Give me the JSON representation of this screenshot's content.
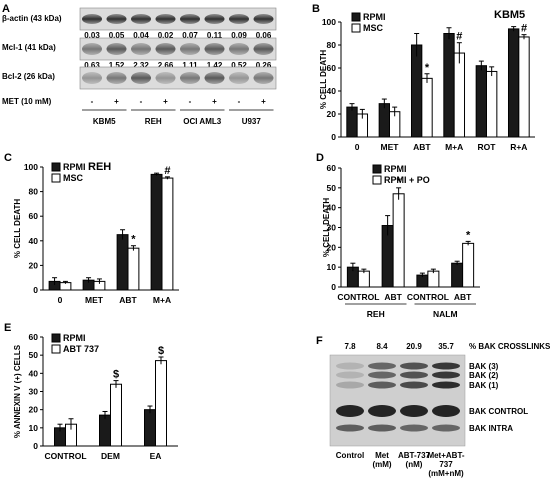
{
  "panels": {
    "A": {
      "label": "A",
      "rows": [
        {
          "name": "β-actin (43 kDa)",
          "values": [
            "0.03",
            "0.05",
            "0.04",
            "0.02",
            "0.07",
            "0.11",
            "0.09",
            "0.06"
          ]
        },
        {
          "name": "Mcl-1 (41 kDa)",
          "values": [
            "0.63",
            "1.52",
            "2.32",
            "2.66",
            "1.11",
            "1.42",
            "0.52",
            "0.26"
          ]
        },
        {
          "name": "Bcl-2 (26 kDa)",
          "values": []
        }
      ],
      "treatment_label": "MET (10 mM)",
      "treatment_marks": [
        "-",
        "+",
        "-",
        "+",
        "-",
        "+",
        "-",
        "+"
      ],
      "cell_lines": [
        "KBM5",
        "REH",
        "OCI AML3",
        "U937"
      ]
    },
    "F": {
      "label": "F",
      "header": "% BAK CROSSLINKS",
      "crosslink_values": [
        "7.8",
        "8.4",
        "20.9",
        "35.7"
      ],
      "band_labels": [
        "BAK (3)",
        "BAK (2)",
        "BAK (1)",
        "BAK CONTROL",
        "BAK INTRA"
      ],
      "lanes": [
        "Control",
        "Met\n(mM)",
        "ABT-737\n(nM)",
        "Met+ABT-\n737\n(mM+nM)"
      ]
    }
  },
  "chart_data": [
    {
      "id": "B",
      "panel_label": "B",
      "type": "bar",
      "title": "KBM5",
      "ylabel": "% CELL DEATH",
      "ylim": [
        0,
        100
      ],
      "yticks": [
        0,
        20,
        40,
        60,
        80,
        100
      ],
      "categories": [
        "0",
        "MET",
        "ABT",
        "M+A",
        "ROT",
        "R+A"
      ],
      "series": [
        {
          "name": "RPMI",
          "color": "#1a1a1a",
          "values": [
            26,
            29,
            80,
            90,
            62,
            94
          ],
          "errors": [
            3,
            4,
            10,
            5,
            4,
            2
          ]
        },
        {
          "name": "MSC",
          "color": "#ffffff",
          "values": [
            20,
            22,
            51,
            73,
            57,
            87
          ],
          "errors": [
            4,
            4,
            4,
            9,
            4,
            2
          ]
        }
      ],
      "annotations": [
        {
          "category": "ABT",
          "series": "MSC",
          "text": "*"
        },
        {
          "category": "M+A",
          "series": "MSC",
          "text": "#"
        },
        {
          "category": "R+A",
          "series": "MSC",
          "text": "#"
        }
      ]
    },
    {
      "id": "C",
      "panel_label": "C",
      "type": "bar",
      "title": "REH",
      "ylabel": "% CELL DEATH",
      "ylim": [
        0,
        100
      ],
      "yticks": [
        0,
        20,
        40,
        60,
        80,
        100
      ],
      "categories": [
        "0",
        "MET",
        "ABT",
        "M+A"
      ],
      "series": [
        {
          "name": "RPMI",
          "color": "#1a1a1a",
          "values": [
            7,
            8,
            45,
            94
          ],
          "errors": [
            3,
            2,
            4,
            1
          ]
        },
        {
          "name": "MSC",
          "color": "#ffffff",
          "values": [
            6,
            7,
            34,
            91
          ],
          "errors": [
            1,
            2,
            2,
            1
          ]
        }
      ],
      "annotations": [
        {
          "category": "ABT",
          "series": "MSC",
          "text": "*"
        },
        {
          "category": "M+A",
          "series": "MSC",
          "text": "#"
        }
      ]
    },
    {
      "id": "D",
      "panel_label": "D",
      "type": "bar",
      "title": "",
      "ylabel": "% CELL DEATH",
      "ylim": [
        0,
        60
      ],
      "yticks": [
        0,
        10,
        20,
        30,
        40,
        50,
        60
      ],
      "categories": [
        "CONTROL",
        "ABT",
        "CONTROL",
        "ABT"
      ],
      "groups": [
        "REH",
        "NALM"
      ],
      "series": [
        {
          "name": "RPMI",
          "color": "#1a1a1a",
          "values": [
            10,
            31,
            6,
            12
          ],
          "errors": [
            2,
            5,
            1,
            1
          ]
        },
        {
          "name": "RPMI + PO",
          "color": "#ffffff",
          "values": [
            8,
            47,
            8,
            22
          ],
          "errors": [
            1,
            3,
            1,
            1
          ]
        }
      ],
      "annotations": [
        {
          "category": 1,
          "series": "RPMI + PO",
          "text": "*"
        },
        {
          "category": 3,
          "series": "RPMI + PO",
          "text": "*"
        }
      ]
    },
    {
      "id": "E",
      "panel_label": "E",
      "type": "bar",
      "title": "",
      "ylabel": "% ANNEXIN V (+) CELLS",
      "ylim": [
        0,
        60
      ],
      "yticks": [
        0,
        10,
        20,
        30,
        40,
        50,
        60
      ],
      "categories": [
        "CONTROL",
        "DEM",
        "EA"
      ],
      "series": [
        {
          "name": "RPMI",
          "color": "#1a1a1a",
          "values": [
            10,
            17,
            20
          ],
          "errors": [
            2,
            2,
            2
          ]
        },
        {
          "name": "ABT 737",
          "color": "#ffffff",
          "values": [
            12,
            34,
            47
          ],
          "errors": [
            3,
            2,
            2
          ]
        }
      ],
      "annotations": [
        {
          "category": "DEM",
          "series": "ABT 737",
          "text": "$"
        },
        {
          "category": "EA",
          "series": "ABT 737",
          "text": "$"
        }
      ]
    }
  ]
}
